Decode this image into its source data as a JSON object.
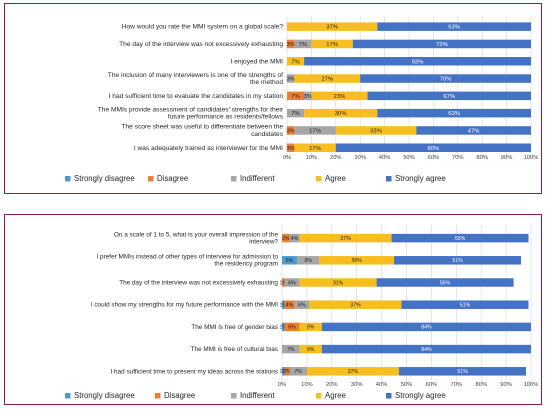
{
  "colors": {
    "strongly_disagree": "#4a9bd1",
    "disagree": "#ee7d31",
    "indifferent": "#a6a6a6",
    "agree": "#f7be20",
    "strongly_agree": "#4472c4",
    "grid": "#d4d4d4",
    "border": "#8e1b3a"
  },
  "chart_data": [
    {
      "type": "bar",
      "orientation": "horizontal",
      "stacked": "percent",
      "categories": [
        "How would you rate the MMI system on a global scale?",
        "The day of the interview was not excessively exhausting",
        "I enjoyed the MMI",
        "The inclusion of many interviewers is one of the strengths of the method",
        "I had sufficient time to evaluate the candidates in my station",
        "The MMIs provide assessment of candidates' strengths for their future performance as residents/fellows",
        "The score sheet was useful to differentiate between the candidates",
        "I was adequately trained as interviewer for the MMI"
      ],
      "series": [
        {
          "name": "Strongly disagree",
          "values": [
            0,
            0,
            0,
            0,
            0,
            0,
            0,
            0
          ],
          "labels": [
            "",
            "",
            "",
            "",
            "",
            "",
            "",
            ""
          ]
        },
        {
          "name": "Disagree",
          "values": [
            0,
            3,
            0,
            0,
            7,
            0,
            3,
            3
          ],
          "labels": [
            "",
            "3%",
            "",
            "",
            "7%",
            "",
            "3%",
            "3%"
          ]
        },
        {
          "name": "Indifferent",
          "values": [
            0,
            7,
            0,
            3,
            3,
            7,
            17,
            0
          ],
          "labels": [
            "",
            "7%",
            "",
            "3%",
            "3%",
            "7%",
            "17%",
            ""
          ]
        },
        {
          "name": "Agree",
          "values": [
            37,
            17,
            7,
            27,
            23,
            30,
            33,
            17
          ],
          "labels": [
            "37%",
            "17%",
            "7%",
            "27%",
            "23%",
            "30%",
            "33%",
            "17%"
          ]
        },
        {
          "name": "Strongly agree",
          "values": [
            63,
            73,
            93,
            70,
            67,
            63,
            47,
            80
          ],
          "labels": [
            "63%",
            "73%",
            "93%",
            "70%",
            "67%",
            "63%",
            "47%",
            "80%"
          ]
        }
      ],
      "xlim": [
        0,
        100
      ],
      "x_ticks": [
        "0%",
        "10%",
        "20%",
        "30%",
        "40%",
        "50%",
        "60%",
        "70%",
        "80%",
        "90%",
        "100%"
      ],
      "grid": true,
      "legend_position": "bottom"
    },
    {
      "type": "bar",
      "orientation": "horizontal",
      "stacked": "percent",
      "categories": [
        "On a scale of 1 to 5, what is your overall impression of the interview?",
        "I prefer  MMIs instead of other types of interview for admission to the residency program",
        "The day of the interview was not excessively exhausting",
        "I could show my strengths for my future performance with the MMI",
        "The MMI is free of gender bias",
        "The MMI is free of cultural bias",
        "I had sufficient time to present my ideas across the stations"
      ],
      "series": [
        {
          "name": "Strongly disagree",
          "values": [
            0,
            6,
            0,
            1,
            1,
            0,
            1
          ],
          "labels": [
            "",
            "6%",
            "",
            "1%",
            "1%",
            "",
            "1%"
          ]
        },
        {
          "name": "Disagree",
          "values": [
            3,
            0,
            1,
            4,
            6,
            0,
            2
          ],
          "labels": [
            "3%",
            "",
            "1%",
            "4%",
            "6%",
            "",
            "2%"
          ]
        },
        {
          "name": "Indifferent",
          "values": [
            4,
            9,
            6,
            6,
            0,
            7,
            7
          ],
          "labels": [
            "4%",
            "9%",
            "6%",
            "6%",
            "",
            "7%",
            "7%"
          ]
        },
        {
          "name": "Agree",
          "values": [
            37,
            30,
            31,
            37,
            9,
            9,
            37
          ],
          "labels": [
            "37%",
            "30%",
            "31%",
            "37%",
            "9%",
            "9%",
            "37%"
          ]
        },
        {
          "name": "Strongly agree",
          "values": [
            55,
            51,
            55,
            51,
            84,
            84,
            51
          ],
          "labels": [
            "55%",
            "51%",
            "55%",
            "51%",
            "84%",
            "84%",
            "51%"
          ]
        }
      ],
      "xlim": [
        0,
        100
      ],
      "x_ticks": [
        "0%",
        "10%",
        "20%",
        "30%",
        "40%",
        "50%",
        "60%",
        "70%",
        "80%",
        "90%",
        "100%"
      ],
      "grid": true,
      "legend_position": "bottom"
    }
  ]
}
